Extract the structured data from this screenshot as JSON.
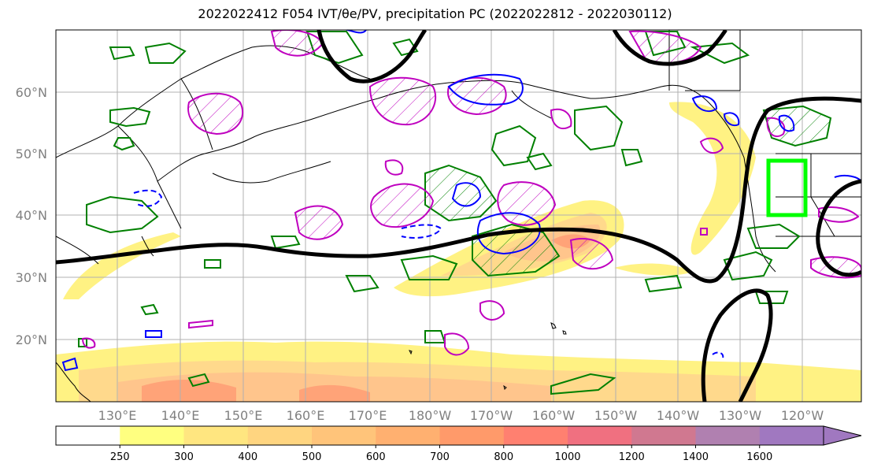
{
  "title": "2022022412 F054 IVT/θe/PV, precipitation PC (2022022812 - 2022030112)",
  "map": {
    "lat_labels": [
      "60°N",
      "50°N",
      "40°N",
      "30°N",
      "20°N"
    ],
    "lon_labels": [
      "130°E",
      "140°E",
      "150°E",
      "160°E",
      "170°E",
      "180°W",
      "170°W",
      "160°W",
      "150°W",
      "140°W",
      "130°W",
      "120°W"
    ],
    "colors": {
      "land_outline": "#000000",
      "grid": "#b0b0b0",
      "contour_heavy": "#000000",
      "contour_green": "#008000",
      "contour_magenta": "#bf00bf",
      "contour_blue": "#0000ff",
      "highlight_box": "#00ff00"
    }
  },
  "colorbar": {
    "ticks": [
      "250",
      "300",
      "400",
      "500",
      "600",
      "700",
      "800",
      "1000",
      "1200",
      "1400",
      "1600"
    ],
    "colors": [
      "#ffffff",
      "#ffff80",
      "#ffe680",
      "#ffd580",
      "#ffc47a",
      "#ffb070",
      "#ff9a6a",
      "#ff8070",
      "#f07080",
      "#d07890",
      "#b080b0",
      "#a078c0"
    ]
  }
}
